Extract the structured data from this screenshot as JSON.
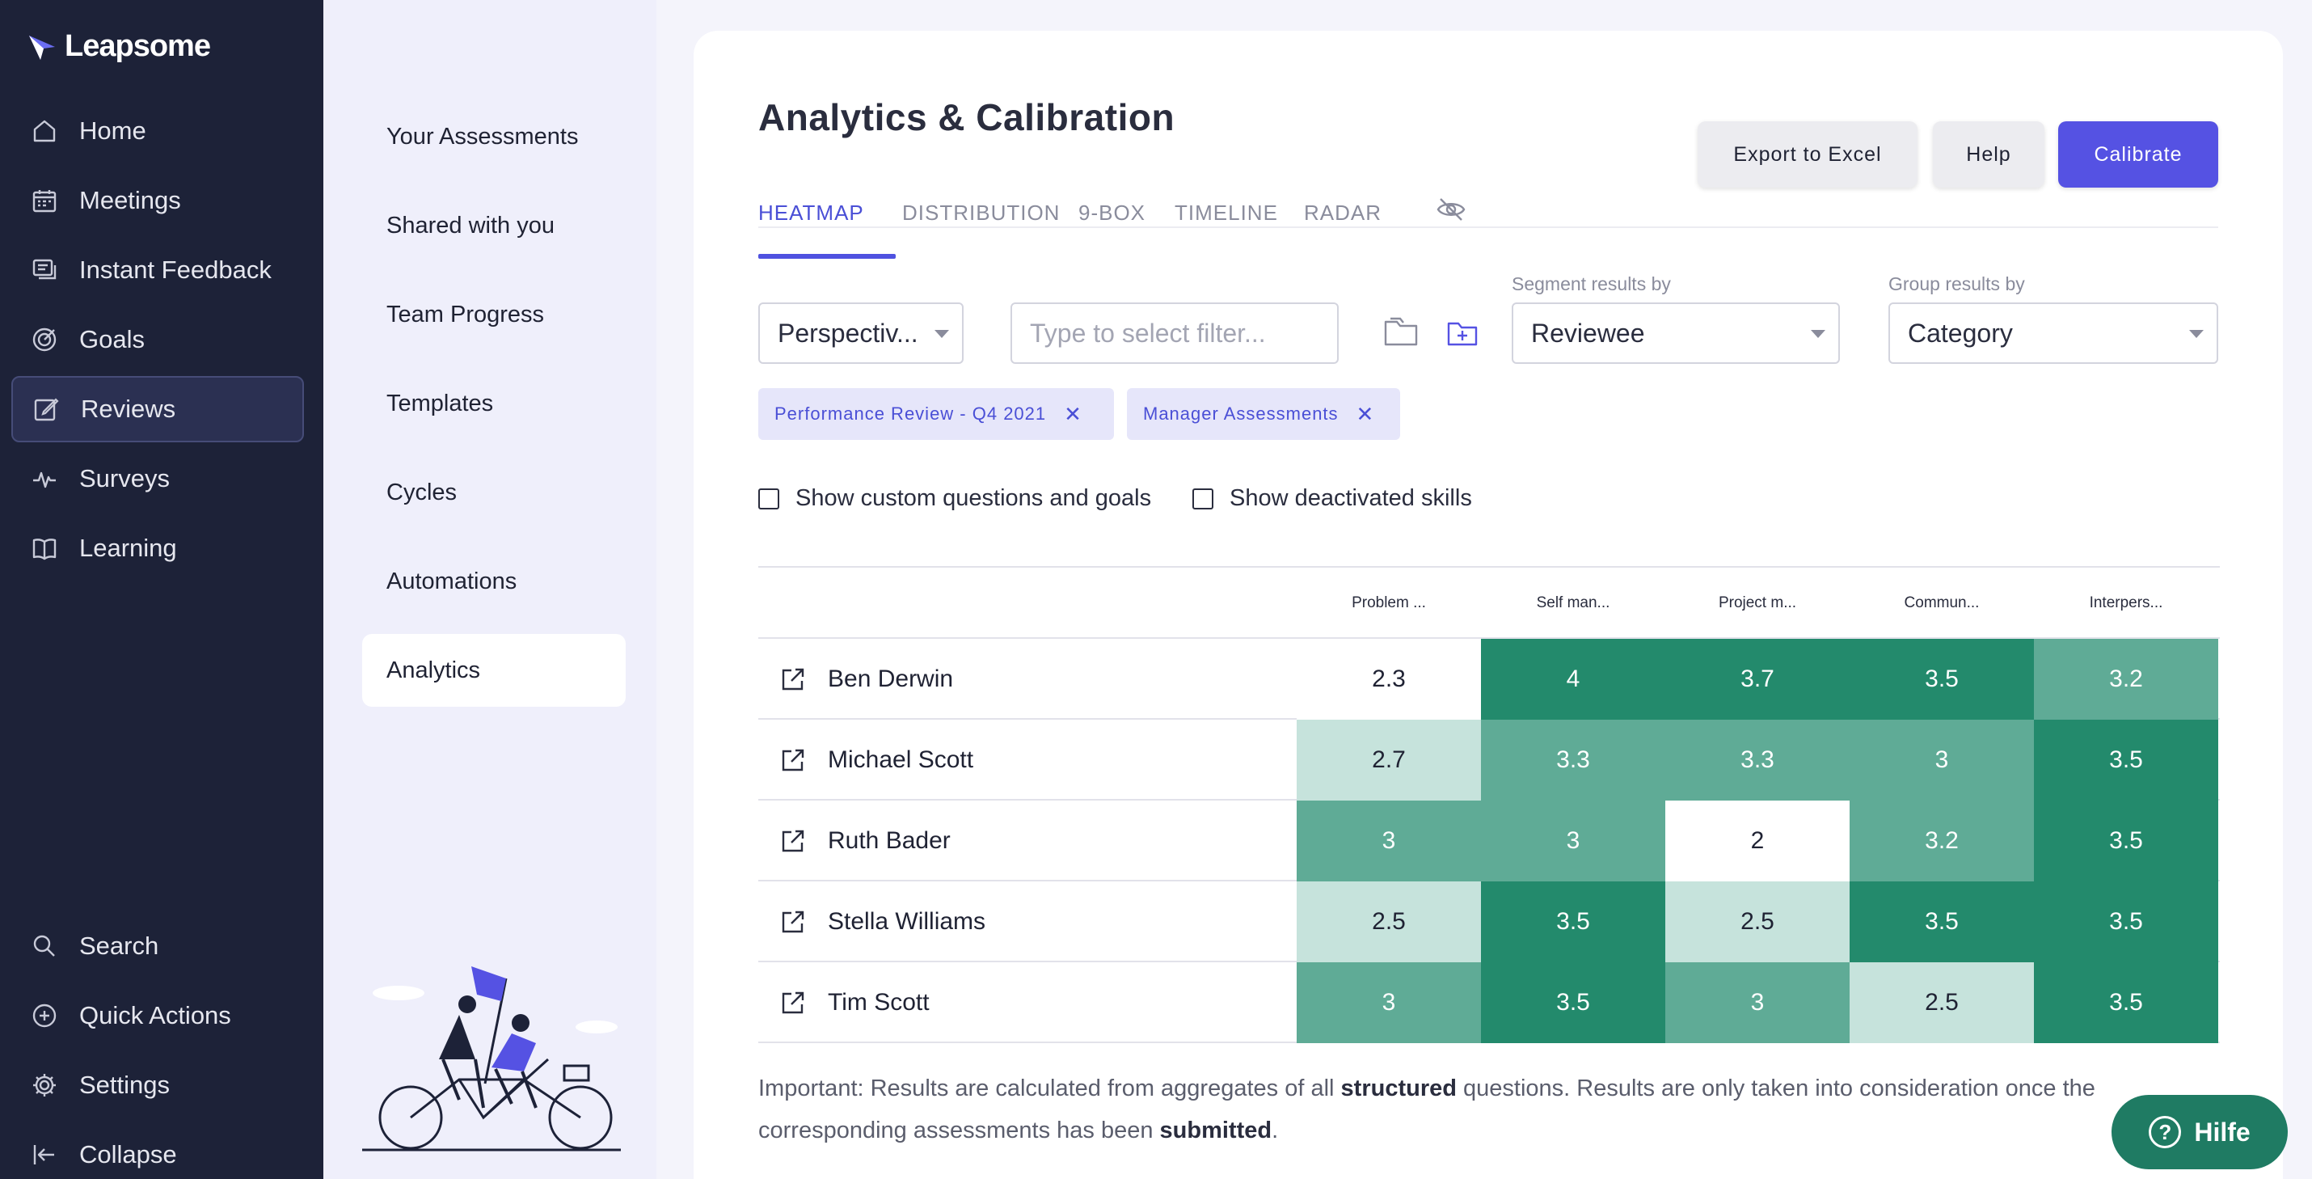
{
  "brand": {
    "name": "Leapsome"
  },
  "nav": {
    "items": [
      {
        "label": "Home",
        "icon": "home-icon"
      },
      {
        "label": "Meetings",
        "icon": "calendar-icon"
      },
      {
        "label": "Instant Feedback",
        "icon": "chat-icon"
      },
      {
        "label": "Goals",
        "icon": "target-icon"
      },
      {
        "label": "Reviews",
        "icon": "edit-icon"
      },
      {
        "label": "Surveys",
        "icon": "pulse-icon"
      },
      {
        "label": "Learning",
        "icon": "book-icon"
      }
    ],
    "bottom": [
      {
        "label": "Search",
        "icon": "search-icon"
      },
      {
        "label": "Quick Actions",
        "icon": "plus-circle-icon"
      },
      {
        "label": "Settings",
        "icon": "gear-icon"
      },
      {
        "label": "Collapse",
        "icon": "collapse-icon"
      }
    ]
  },
  "subnav": {
    "items": [
      {
        "label": "Your Assessments"
      },
      {
        "label": "Shared with you"
      },
      {
        "label": "Team Progress"
      },
      {
        "label": "Templates"
      },
      {
        "label": "Cycles"
      },
      {
        "label": "Automations"
      },
      {
        "label": "Analytics"
      }
    ]
  },
  "page": {
    "title": "Analytics & Calibration"
  },
  "tabs": [
    {
      "label": "HEATMAP"
    },
    {
      "label": "DISTRIBUTION"
    },
    {
      "label": "9-BOX"
    },
    {
      "label": "TIMELINE"
    },
    {
      "label": "RADAR"
    }
  ],
  "actions": {
    "export": "Export to Excel",
    "help": "Help",
    "calibrate": "Calibrate"
  },
  "filters": {
    "perspective": "Perspectiv...",
    "filter_placeholder": "Type to select filter...",
    "segment_label": "Segment results by",
    "segment_value": "Reviewee",
    "group_label": "Group results by",
    "group_value": "Category"
  },
  "chips": [
    {
      "label": "Performance Review - Q4 2021"
    },
    {
      "label": "Manager Assessments"
    }
  ],
  "checkboxes": {
    "custom": "Show custom questions and goals",
    "deactivated": "Show deactivated skills"
  },
  "heatmap": {
    "columns": [
      "Problem ...",
      "Self man...",
      "Project m...",
      "Commun...",
      "Interpers..."
    ],
    "rows": [
      {
        "name": "Ben Derwin",
        "values": [
          "2.3",
          "4",
          "3.7",
          "3.5",
          "3.2"
        ]
      },
      {
        "name": "Michael Scott",
        "values": [
          "2.7",
          "3.3",
          "3.3",
          "3",
          "3.5"
        ]
      },
      {
        "name": "Ruth Bader",
        "values": [
          "3",
          "3",
          "2",
          "3.2",
          "3.5"
        ]
      },
      {
        "name": "Stella Williams",
        "values": [
          "2.5",
          "3.5",
          "2.5",
          "3.5",
          "3.5"
        ]
      },
      {
        "name": "Tim Scott",
        "values": [
          "3",
          "3.5",
          "3",
          "2.5",
          "3.5"
        ]
      }
    ]
  },
  "note": {
    "part1": "Important: Results are calculated from aggregates of all ",
    "bold1": "structured",
    "part2": " questions. Results are only taken into consideration once the corresponding assessments has been ",
    "bold2": "submitted",
    "part3": "."
  },
  "support": {
    "label": "Hilfe"
  },
  "colors": {
    "accent": "#5552e3",
    "nav_bg": "#1d2238",
    "heat_dark": "#238a6c",
    "heat_mid": "#5fab96",
    "heat_light": "#c6e3dc"
  }
}
